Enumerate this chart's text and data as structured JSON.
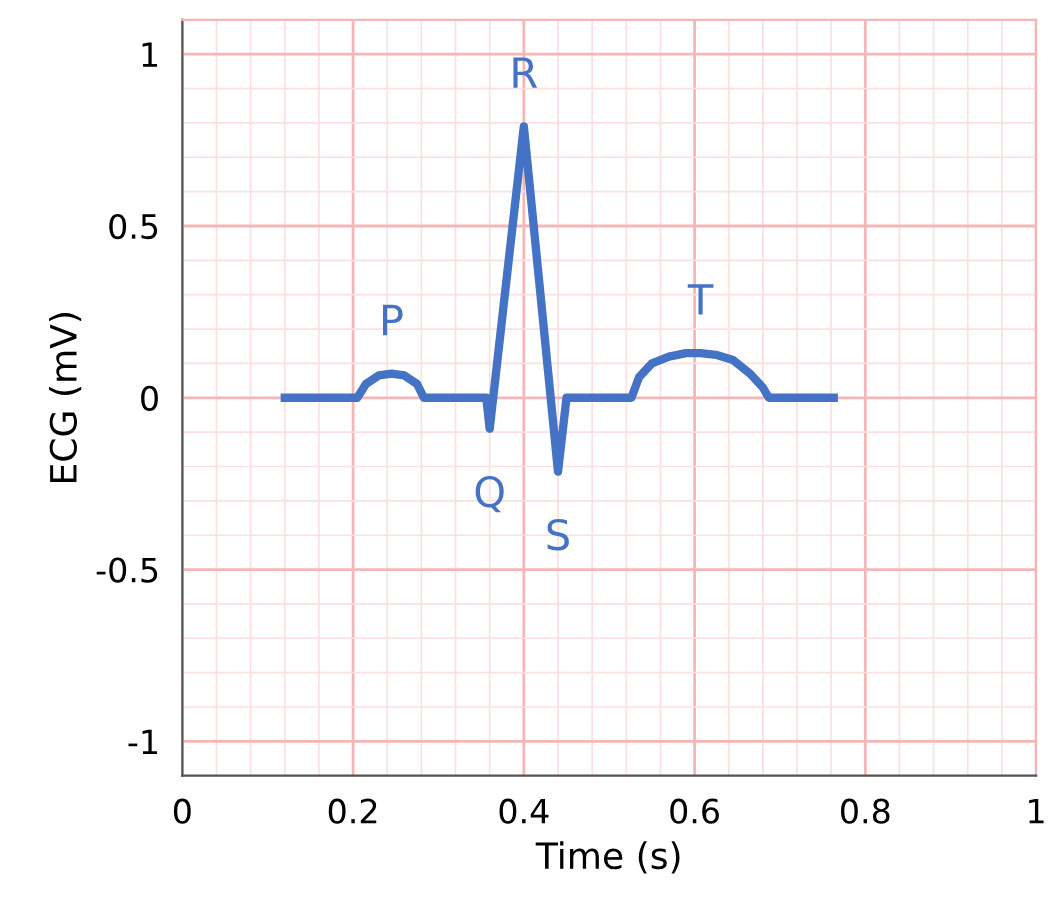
{
  "chart_data": {
    "type": "line",
    "xlabel": "Time (s)",
    "ylabel": "ECG (mV)",
    "series": [
      {
        "color": "#4472c4",
        "x": [
          0.12,
          0.205,
          0.215,
          0.23,
          0.245,
          0.26,
          0.275,
          0.283,
          0.356,
          0.36,
          0.4,
          0.44,
          0.45,
          0.526,
          0.535,
          0.55,
          0.57,
          0.59,
          0.607,
          0.625,
          0.645,
          0.665,
          0.68,
          0.687,
          0.763
        ],
        "values": [
          0,
          0,
          0.04,
          0.065,
          0.07,
          0.065,
          0.04,
          0,
          0,
          -0.09,
          0.79,
          -0.215,
          0,
          0,
          0.06,
          0.1,
          0.12,
          0.13,
          0.13,
          0.125,
          0.11,
          0.07,
          0.03,
          0,
          0
        ]
      }
    ],
    "xlim": [
      0,
      1
    ],
    "ylim": [
      -1.1,
      1.1
    ],
    "xticks": [
      0,
      0.2,
      0.4,
      0.6,
      0.8,
      1
    ],
    "yticks": [
      -1,
      -0.5,
      0,
      0.5,
      1
    ],
    "grid": true,
    "marker": "none",
    "line_style": "solid",
    "annotations": [
      {
        "text": "P",
        "x": 0.245,
        "y": 0.07
      },
      {
        "text": "Q",
        "x": 0.36,
        "y": -0.09
      },
      {
        "text": "R",
        "x": 0.4,
        "y": 0.79
      },
      {
        "text": "S",
        "x": 0.44,
        "y": -0.215
      },
      {
        "text": "T",
        "x": 0.607,
        "y": 0.13
      }
    ]
  }
}
